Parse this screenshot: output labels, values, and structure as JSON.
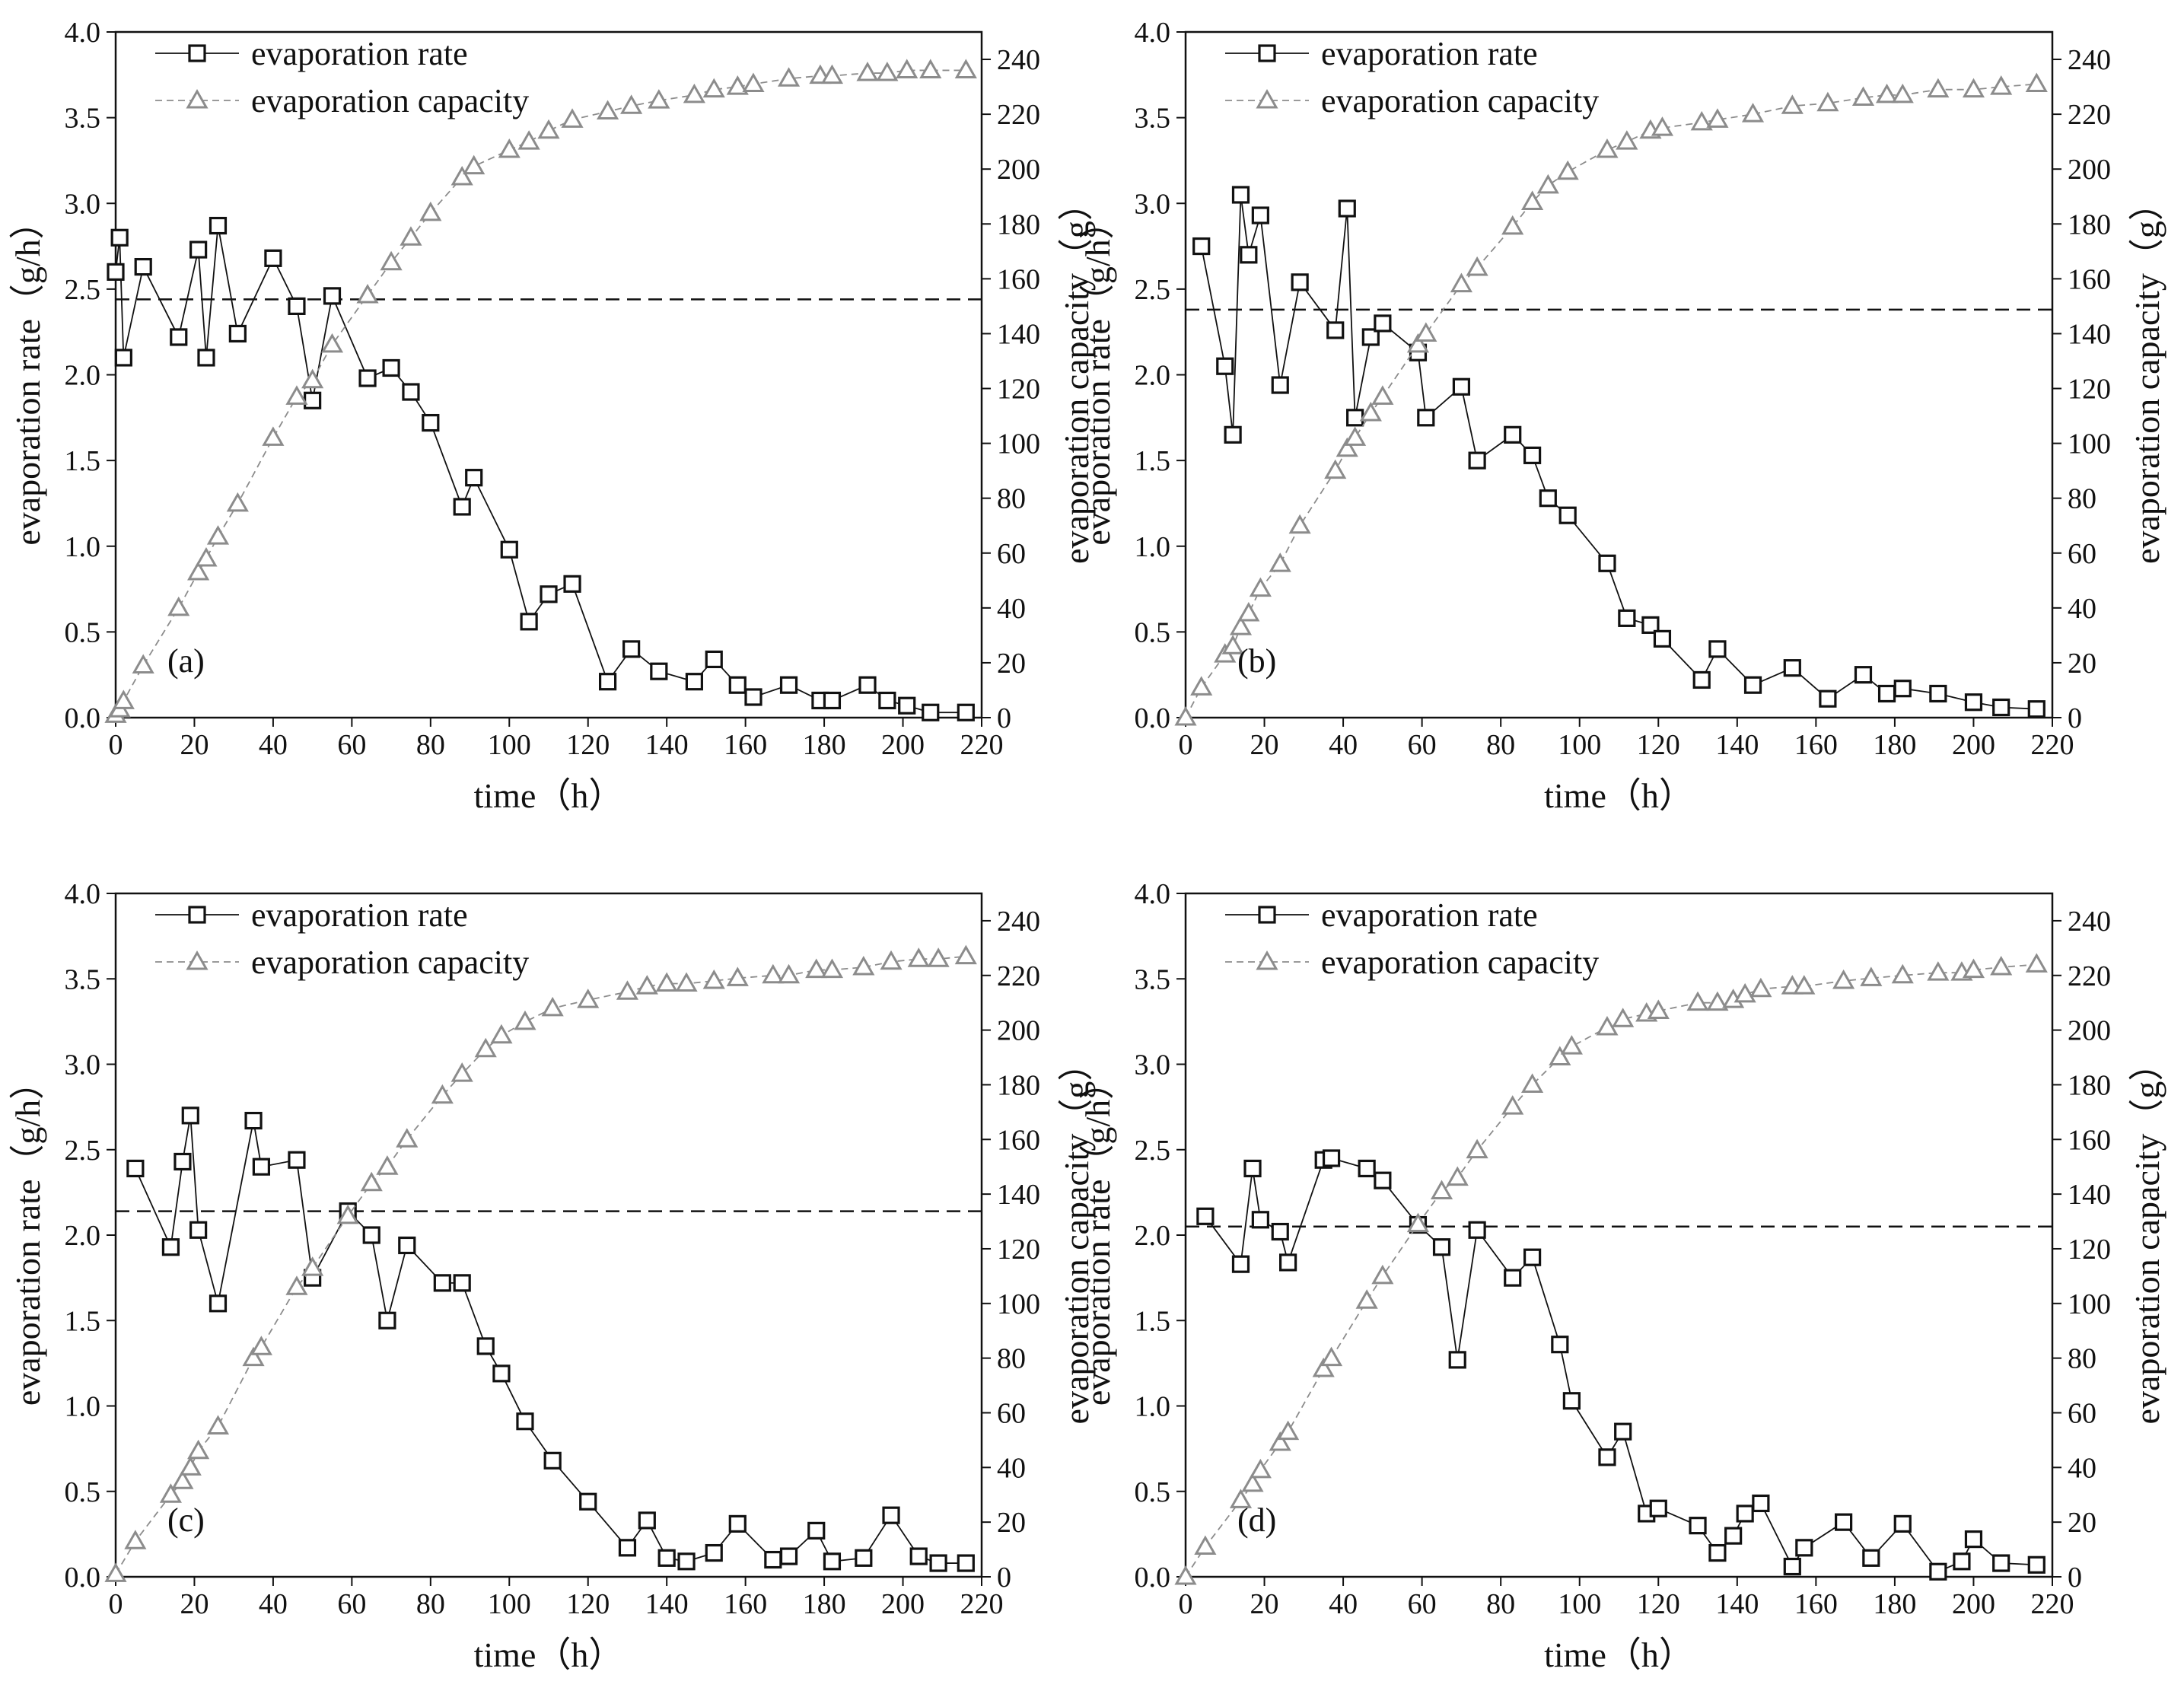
{
  "figure": {
    "colors": {
      "rate": "#111111",
      "capacity": "#8c8c8c",
      "mean_line": "#111111"
    },
    "legend": {
      "rate_label": "evaporation rate",
      "capacity_label": "evaporation capacity",
      "placement": "top-left"
    }
  },
  "chart_data": [
    {
      "type": "line",
      "panel_label": "(a)",
      "xlabel": "time（h）",
      "ylabel_left": "evaporation rate（g/h）",
      "ylabel_right": "evaporation capacity（g）",
      "xlim": [
        0,
        220
      ],
      "xticks": [
        0,
        20,
        40,
        60,
        80,
        100,
        120,
        140,
        160,
        180,
        200,
        220
      ],
      "ylim_left": [
        0,
        4.0
      ],
      "yticks_left": [
        "0.0",
        "0.5",
        "1.0",
        "1.5",
        "2.0",
        "2.5",
        "3.0",
        "3.5",
        "4.0"
      ],
      "ylim_right": [
        0,
        250
      ],
      "yticks_right": [
        0,
        20,
        40,
        60,
        80,
        100,
        120,
        140,
        160,
        180,
        200,
        220,
        240
      ],
      "mean_rate": 2.44,
      "series": [
        {
          "name": "evaporation rate",
          "axis": "left",
          "marker": "square",
          "x": [
            0,
            1,
            2,
            7,
            16,
            21,
            23,
            26,
            31,
            40,
            46,
            50,
            55,
            64,
            70,
            75,
            80,
            88,
            91,
            100,
            105,
            110,
            116,
            125,
            131,
            138,
            147,
            152,
            158,
            162,
            171,
            179,
            182,
            191,
            196,
            201,
            207,
            216
          ],
          "y": [
            2.6,
            2.8,
            2.1,
            2.63,
            2.22,
            2.73,
            2.1,
            2.87,
            2.24,
            2.68,
            2.4,
            1.85,
            2.46,
            1.98,
            2.04,
            1.9,
            1.72,
            1.23,
            1.4,
            0.98,
            0.56,
            0.72,
            0.78,
            0.21,
            0.4,
            0.27,
            0.21,
            0.34,
            0.19,
            0.12,
            0.19,
            0.1,
            0.1,
            0.19,
            0.1,
            0.07,
            0.03,
            0.03
          ]
        },
        {
          "name": "evaporation capacity",
          "axis": "right",
          "marker": "triangle",
          "x": [
            0,
            1,
            2,
            7,
            16,
            21,
            23,
            26,
            31,
            40,
            46,
            50,
            55,
            64,
            70,
            75,
            80,
            88,
            91,
            100,
            105,
            110,
            116,
            125,
            131,
            138,
            147,
            152,
            158,
            162,
            171,
            179,
            182,
            191,
            196,
            201,
            207,
            216
          ],
          "y": [
            1,
            3,
            6,
            19,
            40,
            53,
            58,
            66,
            78,
            102,
            117,
            123,
            136,
            154,
            166,
            175,
            184,
            197,
            201,
            207,
            210,
            214,
            218,
            221,
            223,
            225,
            227,
            229,
            230,
            231,
            233,
            234,
            234,
            235,
            235,
            236,
            236,
            236
          ]
        }
      ]
    },
    {
      "type": "line",
      "panel_label": "(b)",
      "xlabel": "time（h）",
      "ylabel_left": "evaporation rate（g/h）",
      "ylabel_right": "evaporation capacity（g）",
      "xlim": [
        0,
        220
      ],
      "xticks": [
        0,
        20,
        40,
        60,
        80,
        100,
        120,
        140,
        160,
        180,
        200,
        220
      ],
      "ylim_left": [
        0,
        4.0
      ],
      "yticks_left": [
        "0.0",
        "0.5",
        "1.0",
        "1.5",
        "2.0",
        "2.5",
        "3.0",
        "3.5",
        "4.0"
      ],
      "ylim_right": [
        0,
        250
      ],
      "yticks_right": [
        0,
        20,
        40,
        60,
        80,
        100,
        120,
        140,
        160,
        180,
        200,
        220,
        240
      ],
      "mean_rate": 2.38,
      "series": [
        {
          "name": "evaporation rate",
          "axis": "left",
          "marker": "square",
          "x": [
            4,
            10,
            12,
            14,
            16,
            19,
            24,
            29,
            38,
            41,
            43,
            47,
            50,
            59,
            61,
            70,
            74,
            83,
            88,
            92,
            97,
            107,
            112,
            118,
            121,
            131,
            135,
            144,
            154,
            163,
            172,
            178,
            182,
            191,
            200,
            207,
            216
          ],
          "y": [
            2.75,
            2.05,
            1.65,
            3.05,
            2.7,
            2.93,
            1.94,
            2.54,
            2.26,
            2.97,
            1.75,
            2.22,
            2.3,
            2.13,
            1.75,
            1.93,
            1.5,
            1.65,
            1.53,
            1.28,
            1.18,
            0.9,
            0.58,
            0.54,
            0.46,
            0.22,
            0.4,
            0.19,
            0.29,
            0.11,
            0.25,
            0.14,
            0.17,
            0.14,
            0.09,
            0.06,
            0.05
          ]
        },
        {
          "name": "evaporation capacity",
          "axis": "right",
          "marker": "triangle",
          "x": [
            0,
            4,
            10,
            12,
            14,
            16,
            19,
            24,
            29,
            38,
            41,
            43,
            47,
            50,
            59,
            61,
            70,
            74,
            83,
            88,
            92,
            97,
            107,
            112,
            118,
            121,
            131,
            135,
            144,
            154,
            163,
            172,
            178,
            182,
            191,
            200,
            207,
            216
          ],
          "y": [
            0,
            11,
            23,
            26,
            33,
            38,
            47,
            56,
            70,
            90,
            98,
            102,
            111,
            117,
            136,
            140,
            158,
            164,
            179,
            188,
            194,
            199,
            207,
            210,
            214,
            215,
            217,
            218,
            220,
            223,
            224,
            226,
            227,
            227,
            229,
            229,
            230,
            231
          ]
        }
      ]
    },
    {
      "type": "line",
      "panel_label": "(c)",
      "xlabel": "time（h）",
      "ylabel_left": "evaporation rate（g/h）",
      "ylabel_right": "evaporation capacity（g）",
      "xlim": [
        0,
        220
      ],
      "xticks": [
        0,
        20,
        40,
        60,
        80,
        100,
        120,
        140,
        160,
        180,
        200,
        220
      ],
      "ylim_left": [
        0,
        4.0
      ],
      "yticks_left": [
        "0.0",
        "0.5",
        "1.0",
        "1.5",
        "2.0",
        "2.5",
        "3.0",
        "3.5",
        "4.0"
      ],
      "ylim_right": [
        0,
        250
      ],
      "yticks_right": [
        0,
        20,
        40,
        60,
        80,
        100,
        120,
        140,
        160,
        180,
        200,
        220,
        240
      ],
      "mean_rate": 2.14,
      "series": [
        {
          "name": "evaporation rate",
          "axis": "left",
          "marker": "square",
          "x": [
            5,
            14,
            17,
            19,
            21,
            26,
            35,
            37,
            46,
            50,
            59,
            65,
            69,
            74,
            83,
            88,
            94,
            98,
            104,
            111,
            120,
            130,
            135,
            140,
            145,
            152,
            158,
            167,
            171,
            178,
            182,
            190,
            197,
            204,
            209,
            216
          ],
          "y": [
            2.39,
            1.93,
            2.43,
            2.7,
            2.03,
            1.6,
            2.67,
            2.4,
            2.44,
            1.75,
            2.14,
            2.0,
            1.5,
            1.94,
            1.72,
            1.72,
            1.35,
            1.19,
            0.91,
            0.68,
            0.44,
            0.17,
            0.33,
            0.11,
            0.09,
            0.14,
            0.31,
            0.1,
            0.12,
            0.27,
            0.09,
            0.11,
            0.36,
            0.12,
            0.08,
            0.08
          ]
        },
        {
          "name": "evaporation capacity",
          "axis": "right",
          "marker": "triangle",
          "x": [
            0,
            5,
            14,
            17,
            19,
            21,
            26,
            35,
            37,
            46,
            50,
            59,
            65,
            69,
            74,
            83,
            88,
            94,
            98,
            104,
            111,
            120,
            130,
            135,
            140,
            145,
            152,
            158,
            167,
            171,
            178,
            182,
            190,
            197,
            204,
            209,
            216
          ],
          "y": [
            1,
            13,
            30,
            35,
            40,
            46,
            55,
            80,
            84,
            106,
            113,
            132,
            144,
            150,
            160,
            176,
            184,
            193,
            198,
            203,
            208,
            211,
            214,
            216,
            217,
            217,
            218,
            219,
            220,
            220,
            222,
            222,
            223,
            225,
            226,
            226,
            227
          ]
        }
      ]
    },
    {
      "type": "line",
      "panel_label": "(d)",
      "xlabel": "time（h）",
      "ylabel_left": "evaporation rate（g/h）",
      "ylabel_right": "evaporation capacity（g）",
      "xlim": [
        0,
        220
      ],
      "xticks": [
        0,
        20,
        40,
        60,
        80,
        100,
        120,
        140,
        160,
        180,
        200,
        220
      ],
      "ylim_left": [
        0,
        4.0
      ],
      "yticks_left": [
        "0.0",
        "0.5",
        "1.0",
        "1.5",
        "2.0",
        "2.5",
        "3.0",
        "3.5",
        "4.0"
      ],
      "ylim_right": [
        0,
        250
      ],
      "yticks_right": [
        0,
        20,
        40,
        60,
        80,
        100,
        120,
        140,
        160,
        180,
        200,
        220,
        240
      ],
      "mean_rate": 2.05,
      "series": [
        {
          "name": "evaporation rate",
          "axis": "left",
          "marker": "square",
          "x": [
            5,
            14,
            17,
            19,
            24,
            26,
            35,
            37,
            46,
            50,
            59,
            65,
            69,
            74,
            83,
            88,
            95,
            98,
            107,
            111,
            117,
            120,
            130,
            135,
            139,
            142,
            146,
            154,
            157,
            167,
            174,
            182,
            191,
            197,
            200,
            207,
            216
          ],
          "y": [
            2.11,
            1.83,
            2.39,
            2.09,
            2.02,
            1.84,
            2.44,
            2.45,
            2.39,
            2.32,
            2.06,
            1.93,
            1.27,
            2.03,
            1.75,
            1.87,
            1.36,
            1.03,
            0.7,
            0.85,
            0.37,
            0.4,
            0.3,
            0.14,
            0.24,
            0.37,
            0.43,
            0.06,
            0.17,
            0.32,
            0.11,
            0.31,
            0.03,
            0.09,
            0.22,
            0.08,
            0.07
          ]
        },
        {
          "name": "evaporation capacity",
          "axis": "right",
          "marker": "triangle",
          "x": [
            0,
            5,
            14,
            17,
            19,
            24,
            26,
            35,
            37,
            46,
            50,
            59,
            65,
            69,
            74,
            83,
            88,
            95,
            98,
            107,
            111,
            117,
            120,
            130,
            135,
            139,
            142,
            146,
            154,
            157,
            167,
            174,
            182,
            191,
            197,
            200,
            207,
            216
          ],
          "y": [
            0,
            11,
            28,
            34,
            39,
            49,
            53,
            76,
            80,
            101,
            110,
            129,
            141,
            146,
            156,
            172,
            180,
            190,
            194,
            201,
            204,
            206,
            207,
            210,
            210,
            211,
            213,
            215,
            216,
            216,
            218,
            219,
            220,
            221,
            221,
            222,
            223,
            224
          ]
        }
      ]
    }
  ]
}
